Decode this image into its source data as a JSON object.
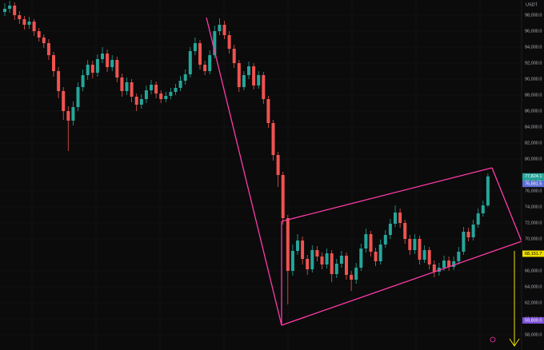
{
  "chart_data": {
    "type": "candlestick",
    "currency": "USDT",
    "ylim": [
      56100,
      99900
    ],
    "yticks": [
      {
        "value": 98000,
        "label": "98,000.0"
      },
      {
        "value": 96000,
        "label": "96,000.0"
      },
      {
        "value": 94000,
        "label": "94,000.0"
      },
      {
        "value": 92000,
        "label": "92,000.0"
      },
      {
        "value": 90000,
        "label": "90,000.0"
      },
      {
        "value": 88000,
        "label": "88,000.0"
      },
      {
        "value": 86000,
        "label": "86,000.0"
      },
      {
        "value": 84000,
        "label": "84,000.0"
      },
      {
        "value": 82000,
        "label": "82,000.0"
      },
      {
        "value": 80000,
        "label": "80,000.0"
      },
      {
        "value": 76000,
        "label": "76,000.0"
      },
      {
        "value": 74000,
        "label": "74,000.0"
      },
      {
        "value": 72000,
        "label": "72,000.0"
      },
      {
        "value": 70000,
        "label": "70,000.0"
      },
      {
        "value": 66000,
        "label": "66,000.0"
      },
      {
        "value": 64000,
        "label": "64,000.0"
      },
      {
        "value": 62000,
        "label": "62,000.0"
      },
      {
        "value": 60000,
        "label": "60,000.0"
      },
      {
        "value": 58000,
        "label": "58,000.0"
      }
    ],
    "grid": true,
    "up_color": "#26a69a",
    "down_color": "#ef5350",
    "open": [
      98400,
      98800,
      99200,
      98000,
      97500,
      96800,
      97200,
      96000,
      95200,
      94500,
      93000,
      91000,
      88500,
      86000,
      84800,
      86500,
      89000,
      90500,
      91800,
      90800,
      92500,
      93200,
      91500,
      92400,
      90200,
      88500,
      89600,
      87800,
      86800,
      87500,
      88600,
      89300,
      88200,
      87500,
      87900,
      88400,
      88900,
      89800,
      90600,
      93500,
      94500,
      91800,
      91000,
      93000,
      96000,
      96800,
      95500,
      93800,
      92000,
      89000,
      90500,
      91600,
      89200,
      90500,
      87500,
      84500,
      80500,
      78000,
      72600,
      66000,
      68500,
      69800,
      67500,
      66200,
      68600,
      67800,
      66800,
      68200,
      65600,
      66900,
      67900,
      65500,
      64900,
      66400,
      68800,
      70600,
      68400,
      67200,
      69300,
      70500,
      71900,
      73300,
      72000,
      70000,
      68600,
      70000,
      67400,
      68600,
      66800,
      65900,
      66400,
      67300,
      66500,
      67200,
      68400,
      70900,
      70200,
      71800,
      73200,
      74200
    ],
    "high": [
      99500,
      99800,
      99600,
      98500,
      97900,
      97800,
      97500,
      96400,
      95600,
      95000,
      93400,
      91500,
      89000,
      86600,
      87200,
      89600,
      91200,
      92400,
      92300,
      93100,
      94000,
      93700,
      93000,
      92800,
      90700,
      90200,
      90000,
      88200,
      88100,
      89200,
      89900,
      89700,
      88600,
      88400,
      88900,
      89400,
      90400,
      91200,
      94000,
      95200,
      94900,
      92300,
      93600,
      96700,
      97600,
      97300,
      96000,
      94300,
      92400,
      91000,
      92200,
      92000,
      91000,
      90900,
      87900,
      84900,
      80900,
      78400,
      73000,
      69300,
      70600,
      70300,
      68000,
      69200,
      69100,
      68300,
      68800,
      68600,
      67500,
      68500,
      68300,
      66000,
      67000,
      69400,
      71300,
      71000,
      68900,
      69900,
      71100,
      72500,
      74200,
      73800,
      72400,
      70500,
      70600,
      70400,
      69200,
      69000,
      67300,
      67000,
      67900,
      67800,
      67800,
      69000,
      71500,
      71400,
      72400,
      73800,
      74800,
      78200
    ],
    "low": [
      97900,
      98300,
      97400,
      96900,
      96200,
      96300,
      95400,
      94700,
      93900,
      92400,
      90300,
      87600,
      84900,
      81000,
      84200,
      86000,
      88500,
      89900,
      90100,
      90300,
      92000,
      90900,
      91000,
      89600,
      87800,
      88000,
      87100,
      86000,
      86300,
      87000,
      88100,
      87600,
      87000,
      87100,
      87500,
      88000,
      88500,
      89300,
      90200,
      93000,
      91200,
      90500,
      90600,
      92600,
      95500,
      95000,
      93200,
      91400,
      88400,
      88600,
      90000,
      88700,
      88800,
      86900,
      83900,
      79800,
      76500,
      71800,
      61800,
      65400,
      68000,
      66800,
      65500,
      65800,
      67200,
      66200,
      66300,
      64600,
      65100,
      66400,
      64900,
      63500,
      64400,
      66000,
      68300,
      67800,
      66600,
      66800,
      68900,
      70000,
      71500,
      71400,
      69400,
      68000,
      68100,
      66800,
      67000,
      66200,
      65200,
      65400,
      66000,
      66000,
      66100,
      66800,
      68000,
      69700,
      69800,
      71400,
      72800,
      74000
    ],
    "close": [
      98800,
      99200,
      98000,
      97500,
      96800,
      97200,
      96000,
      95200,
      94500,
      93000,
      91000,
      88500,
      86000,
      84800,
      86500,
      89000,
      90500,
      91800,
      90800,
      92500,
      93200,
      91500,
      92400,
      90200,
      88500,
      89600,
      87800,
      86800,
      87500,
      88600,
      89300,
      88200,
      87500,
      87900,
      88400,
      88900,
      89800,
      90600,
      93500,
      94500,
      91800,
      91000,
      93000,
      96000,
      96800,
      95500,
      93800,
      92000,
      89000,
      90500,
      91600,
      89200,
      90500,
      87500,
      84500,
      80500,
      78000,
      72600,
      66000,
      68500,
      69800,
      67500,
      66200,
      68600,
      67800,
      66800,
      68200,
      65600,
      66900,
      67900,
      65500,
      64900,
      66400,
      68800,
      70600,
      68400,
      67200,
      69300,
      70500,
      71900,
      73300,
      72000,
      70000,
      68600,
      70000,
      67400,
      68600,
      66800,
      65900,
      66400,
      67300,
      66500,
      67200,
      68400,
      70900,
      70200,
      71800,
      73200,
      74200,
      77824.1
    ],
    "price_labels": [
      {
        "value": 77824.1,
        "label": "77,824.1",
        "color": "#26a69a",
        "text_color": "#ffffff"
      },
      {
        "value": 76881.5,
        "label": "76,881.5",
        "color": "#5b6cd6",
        "text_color": "#ffffff"
      },
      {
        "value": 68151.7,
        "label": "68,151.7",
        "color": "#f0e000",
        "text_color": "#000000"
      },
      {
        "value": 59800.0,
        "label": "59,800.0",
        "color": "#7b4fd6",
        "text_color": "#ffffff"
      }
    ],
    "countdown": "05:11:29"
  }
}
